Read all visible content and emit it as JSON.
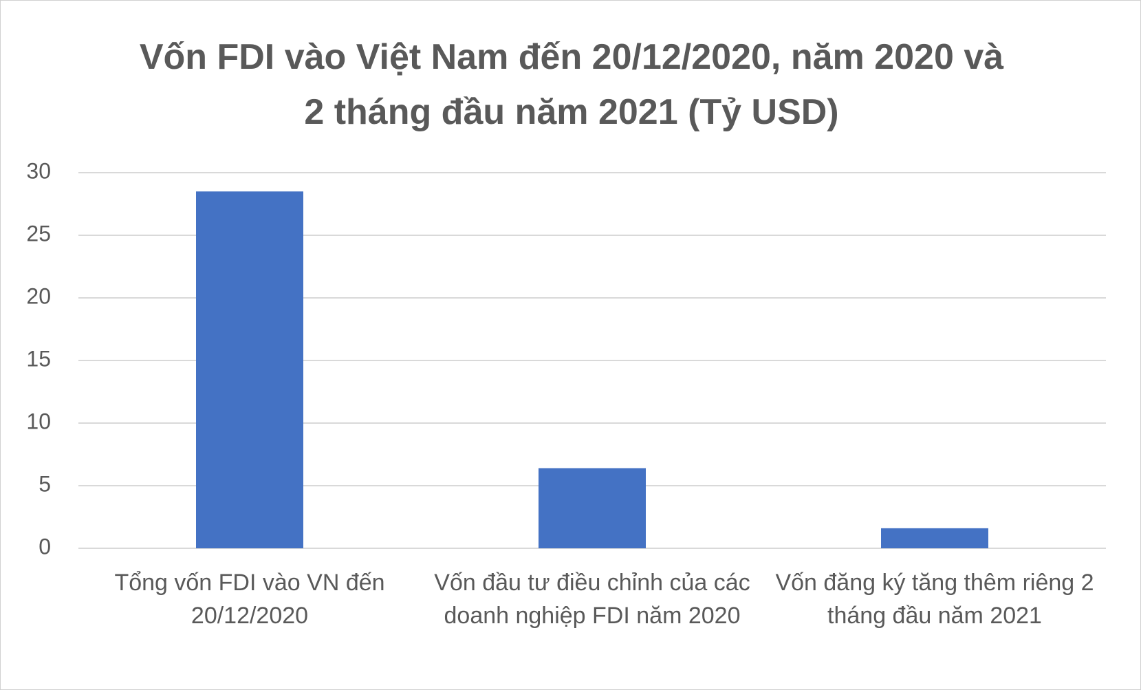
{
  "chart_data": {
    "type": "bar",
    "title": "Vốn FDI vào Việt Nam đến 20/12/2020, năm 2020 và 2 tháng đầu năm 2021 (Tỷ USD)",
    "categories": [
      "Tổng vốn FDI vào VN đến 20/12/2020",
      "Vốn đầu tư điều chỉnh của các doanh nghiệp FDI năm 2020",
      "Vốn đăng ký tăng thêm riêng 2 tháng đầu năm 2021"
    ],
    "values": [
      28.5,
      6.4,
      1.6
    ],
    "color": "#4472c4",
    "ylim": [
      0,
      30
    ],
    "yticks": [
      0,
      5,
      10,
      15,
      20,
      25,
      30
    ],
    "grid": true
  }
}
